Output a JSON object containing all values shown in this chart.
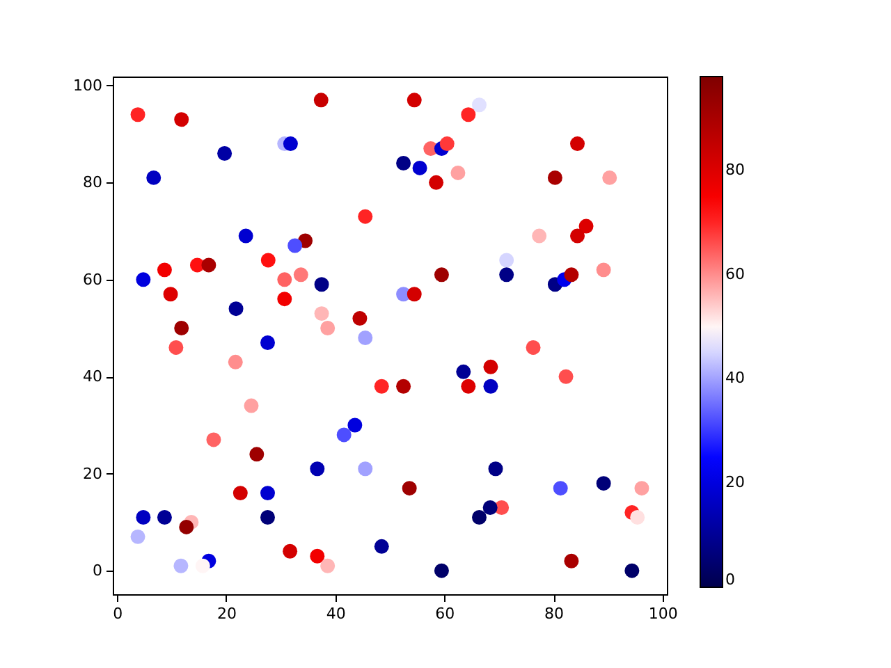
{
  "chart_data": {
    "type": "scatter",
    "marker": "circle",
    "x": [
      3.8,
      11.8,
      37.4,
      19.7,
      30.7,
      31.8,
      6.7,
      23.6,
      34.5,
      32.6,
      8.7,
      14.7,
      16.8,
      27.7,
      4.8,
      9.8,
      30.7,
      33.7,
      37.5,
      30.7,
      21.8,
      37.5,
      11.8,
      38.6,
      27.6,
      10.8,
      21.7,
      24.6,
      17.7,
      25.6,
      36.7,
      22.6,
      27.6,
      4.8,
      8.7,
      27.6,
      13.6,
      12.7,
      3.8,
      31.7,
      36.7,
      38.6,
      16.8,
      15.7,
      11.7,
      54.5,
      66.4,
      64.4,
      57.5,
      59.5,
      60.5,
      52.5,
      55.5,
      58.5,
      62.5,
      80.3,
      45.5,
      77.4,
      59.5,
      71.4,
      71.4,
      80.3,
      82.0,
      83.3,
      52.5,
      54.5,
      44.5,
      45.5,
      76.3,
      63.5,
      68.5,
      48.5,
      52.5,
      64.4,
      68.5,
      82.3,
      43.6,
      41.6,
      45.5,
      69.4,
      53.6,
      81.3,
      70.5,
      68.4,
      66.4,
      48.5,
      59.5,
      83.3,
      84.4,
      90.3,
      86.0,
      84.4,
      89.2,
      89.2,
      96.2,
      94.4,
      95.4,
      94.4
    ],
    "values": [
      94,
      93,
      97,
      86,
      88,
      88,
      81,
      69,
      68,
      67,
      62,
      63,
      63,
      64,
      60,
      57,
      60,
      61,
      59,
      56,
      54,
      53,
      50,
      50,
      47,
      46,
      43,
      34,
      27,
      24,
      21,
      16,
      16,
      11,
      11,
      11,
      10,
      9,
      7,
      4,
      3,
      1,
      2,
      1,
      1,
      97,
      96,
      94,
      87,
      87,
      88,
      84,
      83,
      80,
      82,
      81,
      73,
      69,
      61,
      64,
      61,
      59,
      60,
      61,
      57,
      57,
      52,
      48,
      46,
      41,
      42,
      38,
      38,
      38,
      38,
      40,
      30,
      28,
      21,
      21,
      17,
      17,
      13,
      13,
      11,
      5,
      0,
      2,
      88,
      81,
      71,
      69,
      62,
      18,
      17,
      12,
      11,
      0
    ],
    "cvalues": [
      70,
      82,
      84,
      12,
      42,
      18,
      16,
      18,
      92,
      32,
      76,
      72,
      90,
      72,
      20,
      80,
      64,
      62,
      8,
      76,
      10,
      56,
      92,
      58,
      18,
      66,
      60,
      58,
      64,
      92,
      14,
      82,
      18,
      16,
      10,
      6,
      56,
      94,
      42,
      82,
      76,
      56,
      20,
      50,
      42,
      82,
      46,
      70,
      64,
      18,
      68,
      8,
      18,
      82,
      58,
      90,
      70,
      56,
      92,
      45,
      8,
      8,
      22,
      88,
      38,
      82,
      86,
      40,
      66,
      10,
      82,
      70,
      88,
      80,
      16,
      66,
      20,
      32,
      40,
      8,
      92,
      32,
      66,
      6,
      4,
      10,
      4,
      90,
      82,
      58,
      80,
      82,
      60,
      6,
      58,
      70,
      52,
      4
    ],
    "xlim": [
      -0.8,
      100.8
    ],
    "xticks": [
      0,
      20,
      40,
      60,
      80,
      100
    ],
    "ylim": [
      -4.85,
      101.85
    ],
    "yticks": [
      0,
      20,
      40,
      60,
      80,
      100
    ],
    "clim": [
      0,
      98
    ],
    "cticks": [
      0,
      20,
      40,
      60,
      80
    ]
  }
}
